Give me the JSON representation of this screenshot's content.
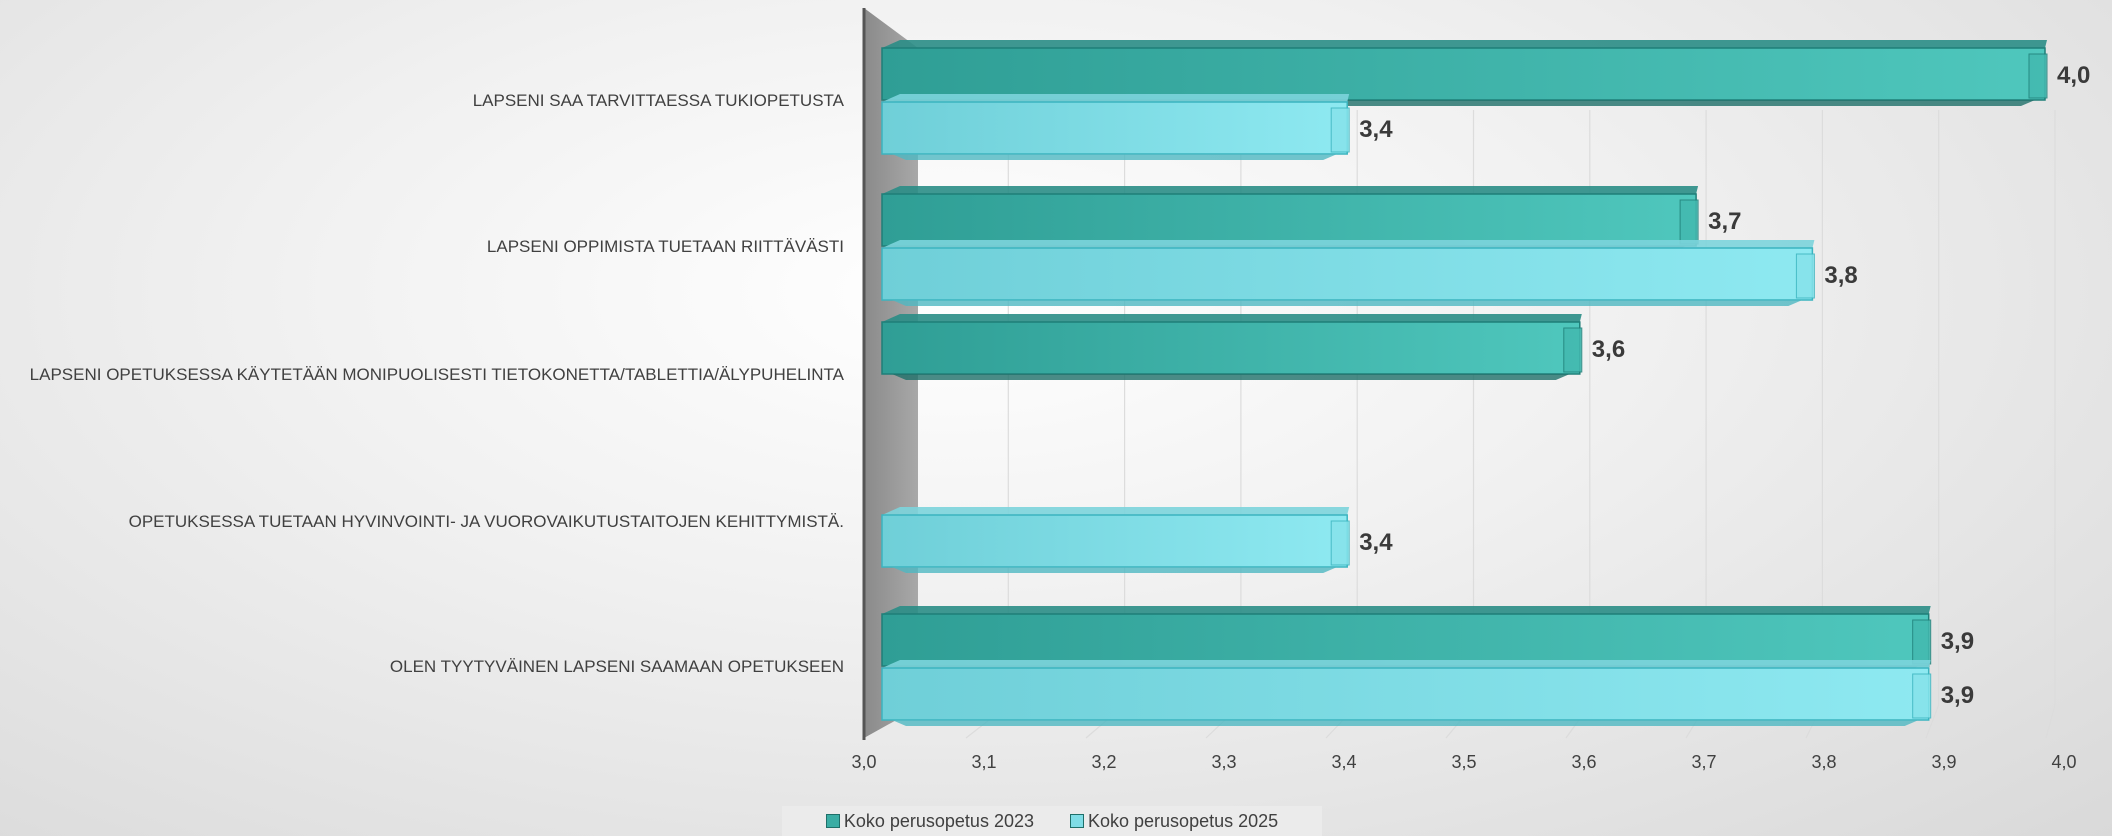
{
  "chart_data": {
    "type": "bar",
    "orientation": "horizontal",
    "categories": [
      "LAPSENI SAA TARVITTAESSA TUKIOPETUSTA",
      "LAPSENI OPPIMISTA TUETAAN RIITTÄVÄSTI",
      "LAPSENI OPETUKSESSA KÄYTETÄÄN MONIPUOLISESTI TIETOKONETTA/TABLETTIA/ÄLYPUHELINTA",
      "OPETUKSESSA TUETAAN HYVINVOINTI- JA VUOROVAIKUTUSTAITOJEN KEHITTYMISTÄ.",
      "OLEN TYYTYVÄINEN LAPSENI SAAMAAN OPETUKSEEN"
    ],
    "series": [
      {
        "name": "Koko perusopetus 2023",
        "color": "#3aada4",
        "values": [
          4.0,
          3.7,
          3.6,
          null,
          3.9
        ],
        "labels": [
          "4,0",
          "3,7",
          "3,6",
          "",
          "3,9"
        ]
      },
      {
        "name": "Koko perusopetus 2025",
        "color": "#7fdde6",
        "values": [
          3.4,
          3.8,
          null,
          3.4,
          3.9
        ],
        "labels": [
          "3,4",
          "3,8",
          "",
          "3,4",
          "3,9"
        ]
      }
    ],
    "xlim": [
      3.0,
      4.0
    ],
    "xticks": [
      "3,0",
      "3,1",
      "3,2",
      "3,3",
      "3,4",
      "3,5",
      "3,6",
      "3,7",
      "3,8",
      "3,9",
      "4,0"
    ],
    "grid": true,
    "legend_position": "bottom",
    "style": "3d"
  }
}
